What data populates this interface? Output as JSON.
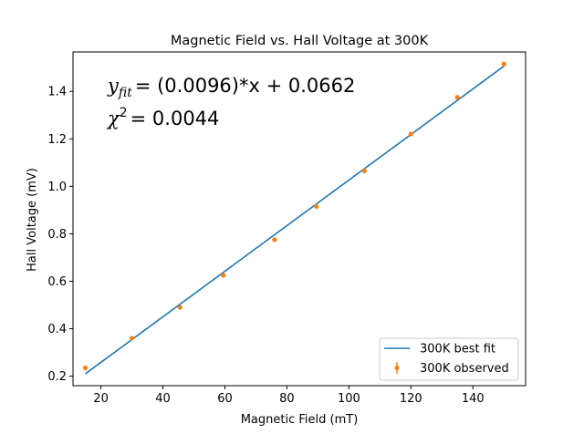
{
  "chart_data": {
    "type": "scatter",
    "title": "Magnetic Field vs. Hall Voltage at 300K",
    "xlabel": "Magnetic Field (mT)",
    "ylabel": "Hall Voltage (mV)",
    "xlim": [
      11,
      157
    ],
    "ylim": [
      0.16,
      1.566
    ],
    "xticks": [
      20,
      40,
      60,
      80,
      100,
      120,
      140
    ],
    "yticks": [
      0.2,
      0.4,
      0.6,
      0.8,
      1.0,
      1.2,
      1.4
    ],
    "xtick_labels": [
      "20",
      "40",
      "60",
      "80",
      "100",
      "120",
      "140"
    ],
    "ytick_labels": [
      "0.2",
      "0.4",
      "0.6",
      "0.8",
      "1.0",
      "1.2",
      "1.4"
    ],
    "grid": false,
    "legend_position": "bottom-right",
    "annotations": {
      "fit_lhs": "y",
      "fit_sub": "fit",
      "fit_rhs": "= (0.0096)*x + 0.0662",
      "chi_sym": "χ",
      "chi_sup": "2",
      "chi_rhs": "= 0.0044"
    },
    "series": [
      {
        "name": "300K best fit",
        "kind": "line",
        "color": "#1f77b4",
        "x": [
          15,
          150
        ],
        "y": [
          0.2102,
          1.5062
        ]
      },
      {
        "name": "300K observed",
        "kind": "errorbar-points",
        "color": "#ff7f0e",
        "x": [
          15,
          30,
          45.5,
          59.5,
          76,
          89.5,
          105,
          120,
          135,
          150
        ],
        "y": [
          0.235,
          0.36,
          0.49,
          0.625,
          0.775,
          0.915,
          1.065,
          1.22,
          1.375,
          1.515
        ]
      }
    ]
  }
}
